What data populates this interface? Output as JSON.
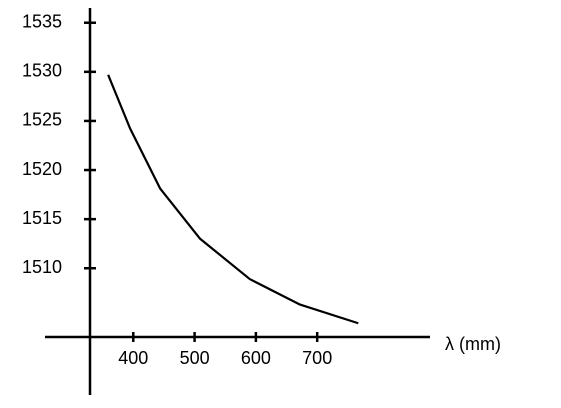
{
  "chart_data": {
    "type": "line",
    "xlabel": "λ (mm)",
    "x": [
      359,
      395,
      444,
      509,
      590,
      672,
      767
    ],
    "series": [
      {
        "color": "#000000",
        "values": [
          1529.7,
          1524.2,
          1518.1,
          1513.0,
          1508.9,
          1506.3,
          1504.4
        ]
      }
    ],
    "xlim": [
      256,
      884
    ],
    "xticks": [
      400,
      500,
      600,
      700
    ],
    "ylim": [
      1503,
      1536.5
    ],
    "yticks": [
      1510,
      1515,
      1520,
      1525,
      1530,
      1535
    ]
  }
}
